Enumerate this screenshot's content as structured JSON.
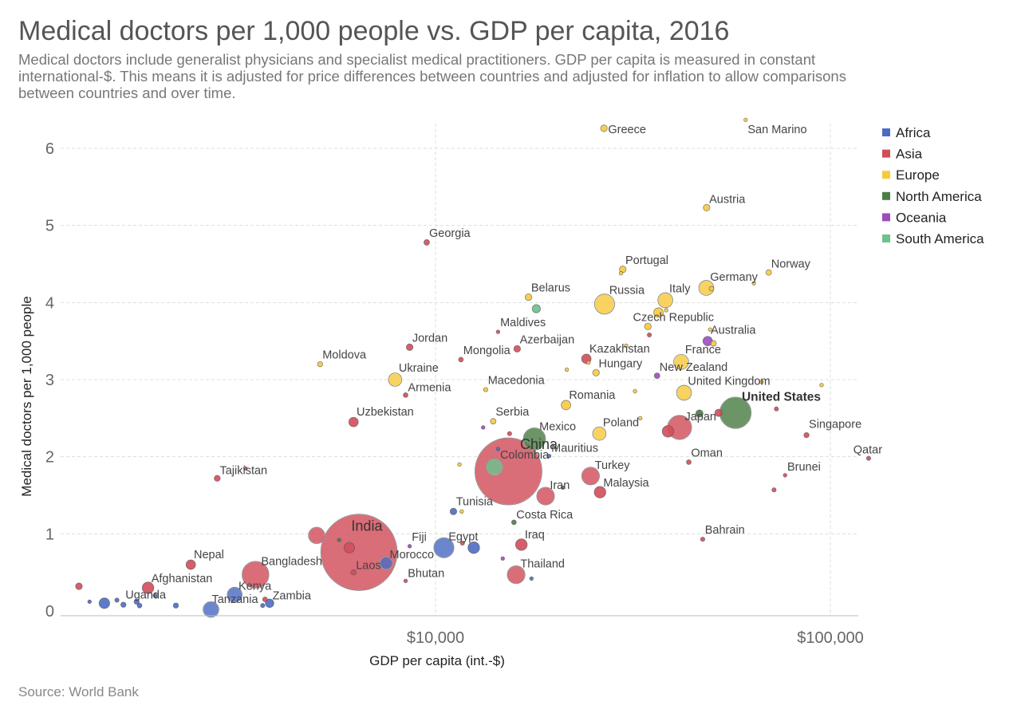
{
  "title": "Medical doctors per 1,000 people vs. GDP per capita, 2016",
  "subtitle": "Medical doctors include generalist physicians and specialist medical practitioners. GDP per capita is measured in constant international-$. This means it is adjusted for price differences between countries and adjusted for inflation to allow comparisons between countries and over time.",
  "source": "Source: World Bank",
  "chart_data": {
    "type": "scatter",
    "xscale": "log",
    "xlim": [
      600,
      115000
    ],
    "ylim": [
      0,
      6.4
    ],
    "xlabel": "GDP per capita (int.-$)",
    "ylabel": "Medical doctors per 1,000 people",
    "x_ticks": [
      {
        "value": 10000,
        "label": "$10,000"
      },
      {
        "value": 100000,
        "label": "$100,000"
      }
    ],
    "y_ticks": [
      0,
      1,
      2,
      3,
      4,
      5,
      6
    ],
    "grid": true,
    "legend_position": "right",
    "legend": [
      {
        "name": "Africa",
        "color": "#4C6BC3"
      },
      {
        "name": "Asia",
        "color": "#D14D5A"
      },
      {
        "name": "Europe",
        "color": "#F7C93F"
      },
      {
        "name": "North America",
        "color": "#4A7E44"
      },
      {
        "name": "Oceania",
        "color": "#9B4DBF"
      },
      {
        "name": "South America",
        "color": "#6CC28C"
      }
    ],
    "points": [
      {
        "label": "Greece",
        "x": 26700,
        "y": 6.26,
        "region": "Europe",
        "size": 1
      },
      {
        "label": "San Marino",
        "x": 61000,
        "y": 6.37,
        "region": "Europe",
        "size": 0.2
      },
      {
        "label": "Austria",
        "x": 48600,
        "y": 5.23,
        "region": "Europe",
        "size": 1
      },
      {
        "label": "Georgia",
        "x": 9500,
        "y": 4.78,
        "region": "Asia",
        "size": 0.7
      },
      {
        "label": "Portugal",
        "x": 29800,
        "y": 4.43,
        "region": "Europe",
        "size": 1
      },
      {
        "label": "Norway",
        "x": 69800,
        "y": 4.39,
        "region": "Europe",
        "size": 0.7
      },
      {
        "label": "Germany",
        "x": 48500,
        "y": 4.19,
        "region": "Europe",
        "size": 5
      },
      {
        "label": "Belarus",
        "x": 17200,
        "y": 4.07,
        "region": "Europe",
        "size": 1
      },
      {
        "label": "Russia",
        "x": 26800,
        "y": 3.98,
        "region": "Europe",
        "size": 9
      },
      {
        "label": "Italy",
        "x": 38200,
        "y": 4.03,
        "region": "Europe",
        "size": 5
      },
      {
        "label": "Czech Republic",
        "x": 34500,
        "y": 3.69,
        "region": "Europe",
        "size": 1
      },
      {
        "label": "Australia",
        "x": 48900,
        "y": 3.5,
        "region": "Oceania",
        "size": 2
      },
      {
        "label": "Maldives",
        "x": 14400,
        "y": 3.62,
        "region": "Asia",
        "size": 0.3
      },
      {
        "label": "Jordan",
        "x": 8600,
        "y": 3.42,
        "region": "Asia",
        "size": 1
      },
      {
        "label": "Azerbaijan",
        "x": 16100,
        "y": 3.4,
        "region": "Asia",
        "size": 1
      },
      {
        "label": "Mongolia",
        "x": 11600,
        "y": 3.26,
        "region": "Asia",
        "size": 0.5
      },
      {
        "label": "Kazakhstan",
        "x": 24100,
        "y": 3.27,
        "region": "Asia",
        "size": 2
      },
      {
        "label": "France",
        "x": 41900,
        "y": 3.23,
        "region": "Europe",
        "size": 5
      },
      {
        "label": "Moldova",
        "x": 5100,
        "y": 3.2,
        "region": "Europe",
        "size": 0.6
      },
      {
        "label": "Hungary",
        "x": 25500,
        "y": 3.09,
        "region": "Europe",
        "size": 1
      },
      {
        "label": "New Zealand",
        "x": 36400,
        "y": 3.05,
        "region": "Oceania",
        "size": 0.7
      },
      {
        "label": "Ukraine",
        "x": 7900,
        "y": 3.0,
        "region": "Europe",
        "size": 4
      },
      {
        "label": "Macedonia",
        "x": 13400,
        "y": 2.87,
        "region": "Europe",
        "size": 0.4
      },
      {
        "label": "United Kingdom",
        "x": 42600,
        "y": 2.83,
        "region": "Europe",
        "size": 5
      },
      {
        "label": "Armenia",
        "x": 8400,
        "y": 2.8,
        "region": "Asia",
        "size": 0.5
      },
      {
        "label": "Romania",
        "x": 21400,
        "y": 2.67,
        "region": "Europe",
        "size": 2
      },
      {
        "label": "United States",
        "x": 57500,
        "y": 2.57,
        "region": "North America",
        "size": 22,
        "bold": true
      },
      {
        "label": "Uzbekistan",
        "x": 6200,
        "y": 2.45,
        "region": "Asia",
        "size": 2
      },
      {
        "label": "Serbia",
        "x": 14000,
        "y": 2.46,
        "region": "Europe",
        "size": 0.7
      },
      {
        "label": "Japan",
        "x": 41500,
        "y": 2.38,
        "region": "Asia",
        "size": 13
      },
      {
        "label": "Poland",
        "x": 26000,
        "y": 2.3,
        "region": "Europe",
        "size": 4
      },
      {
        "label": "Singapore",
        "x": 87000,
        "y": 2.28,
        "region": "Asia",
        "size": 0.6
      },
      {
        "label": "Mexico",
        "x": 17800,
        "y": 2.23,
        "region": "North America",
        "size": 11
      },
      {
        "label": "China",
        "x": 15300,
        "y": 1.81,
        "region": "Asia",
        "size": 100,
        "bold": true
      },
      {
        "label": "Mauritius",
        "x": 19400,
        "y": 2.01,
        "region": "Africa",
        "size": 0.3
      },
      {
        "label": "Qatar",
        "x": 125000,
        "y": 1.98,
        "region": "Asia",
        "size": 0.4
      },
      {
        "label": "Oman",
        "x": 43800,
        "y": 1.93,
        "region": "Asia",
        "size": 0.5
      },
      {
        "label": "Colombia",
        "x": 14100,
        "y": 1.87,
        "region": "South America",
        "size": 6
      },
      {
        "label": "Tajikistan",
        "x": 2800,
        "y": 1.72,
        "region": "Asia",
        "size": 0.8
      },
      {
        "label": "Turkey",
        "x": 24700,
        "y": 1.75,
        "region": "Asia",
        "size": 7
      },
      {
        "label": "Brunei",
        "x": 76800,
        "y": 1.76,
        "region": "Asia",
        "size": 0.3
      },
      {
        "label": "Malaysia",
        "x": 26100,
        "y": 1.54,
        "region": "Asia",
        "size": 3
      },
      {
        "label": "Iran",
        "x": 19000,
        "y": 1.49,
        "region": "Asia",
        "size": 7
      },
      {
        "label": "Tunisia",
        "x": 11100,
        "y": 1.29,
        "region": "Africa",
        "size": 1
      },
      {
        "label": "Costa Rica",
        "x": 15800,
        "y": 1.15,
        "region": "North America",
        "size": 0.5
      },
      {
        "label": "India",
        "x": 6400,
        "y": 0.76,
        "region": "Asia",
        "size": 130,
        "bold": true
      },
      {
        "label": "Bahrain",
        "x": 47500,
        "y": 0.93,
        "region": "Asia",
        "size": 0.4
      },
      {
        "label": "Iraq",
        "x": 16500,
        "y": 0.86,
        "region": "Asia",
        "size": 3
      },
      {
        "label": "Egypt",
        "x": 10500,
        "y": 0.82,
        "region": "Africa",
        "size": 9
      },
      {
        "label": "Fiji",
        "x": 8600,
        "y": 0.84,
        "region": "Oceania",
        "size": 0.3
      },
      {
        "label": "Nepal",
        "x": 2400,
        "y": 0.6,
        "region": "Asia",
        "size": 2
      },
      {
        "label": "Bangladesh",
        "x": 3500,
        "y": 0.47,
        "region": "Asia",
        "size": 16
      },
      {
        "label": "Morocco",
        "x": 7500,
        "y": 0.62,
        "region": "Africa",
        "size": 3.5
      },
      {
        "label": "Laos",
        "x": 6200,
        "y": 0.5,
        "region": "Asia",
        "size": 0.6
      },
      {
        "label": "Thailand",
        "x": 16000,
        "y": 0.47,
        "region": "Asia",
        "size": 7
      },
      {
        "label": "Bhutan",
        "x": 8400,
        "y": 0.39,
        "region": "Asia",
        "size": 0.3
      },
      {
        "label": "Afghanistan",
        "x": 1870,
        "y": 0.3,
        "region": "Asia",
        "size": 3
      },
      {
        "label": "Kenya",
        "x": 3100,
        "y": 0.21,
        "region": "Africa",
        "size": 5
      },
      {
        "label": "Uganda",
        "x": 1750,
        "y": 0.12,
        "region": "Africa",
        "size": 0.6
      },
      {
        "label": "Zambia",
        "x": 3800,
        "y": 0.1,
        "region": "Africa",
        "size": 1.6
      },
      {
        "label": "Tanzania",
        "x": 2700,
        "y": 0.02,
        "region": "Africa",
        "size": 5.5
      }
    ],
    "unlabeled_points": [
      {
        "x": 620,
        "y": 0.05,
        "region": "Africa",
        "size": 1.5
      },
      {
        "x": 1250,
        "y": 0.32,
        "region": "Asia",
        "size": 1
      },
      {
        "x": 1330,
        "y": 0.12,
        "region": "Africa",
        "size": 0.3
      },
      {
        "x": 1450,
        "y": 0.1,
        "region": "Africa",
        "size": 2.5
      },
      {
        "x": 1560,
        "y": 0.14,
        "region": "Africa",
        "size": 0.4
      },
      {
        "x": 1620,
        "y": 0.08,
        "region": "Africa",
        "size": 0.6
      },
      {
        "x": 1780,
        "y": 0.07,
        "region": "Africa",
        "size": 0.5
      },
      {
        "x": 1950,
        "y": 0.2,
        "region": "Africa",
        "size": 0.4
      },
      {
        "x": 2200,
        "y": 0.07,
        "region": "Africa",
        "size": 0.6
      },
      {
        "x": 3650,
        "y": 0.07,
        "region": "Africa",
        "size": 0.4
      },
      {
        "x": 3700,
        "y": 0.15,
        "region": "Asia",
        "size": 0.5
      },
      {
        "x": 5700,
        "y": 0.92,
        "region": "North America",
        "size": 0.3
      },
      {
        "x": 5000,
        "y": 0.98,
        "region": "Asia",
        "size": 6
      },
      {
        "x": 6050,
        "y": 0.82,
        "region": "Asia",
        "size": 2.5
      },
      {
        "x": 3300,
        "y": 1.85,
        "region": "Asia",
        "size": 0.3
      },
      {
        "x": 12500,
        "y": 0.82,
        "region": "Africa",
        "size": 3
      },
      {
        "x": 11700,
        "y": 0.88,
        "region": "Asia",
        "size": 0.4
      },
      {
        "x": 11500,
        "y": 1.9,
        "region": "Europe",
        "size": 0.3
      },
      {
        "x": 11650,
        "y": 1.29,
        "region": "Europe",
        "size": 0.3
      },
      {
        "x": 13200,
        "y": 2.38,
        "region": "Oceania",
        "size": 0.3
      },
      {
        "x": 14400,
        "y": 2.1,
        "region": "Africa",
        "size": 0.3
      },
      {
        "x": 14800,
        "y": 0.68,
        "region": "Oceania",
        "size": 0.3
      },
      {
        "x": 17500,
        "y": 0.42,
        "region": "Africa",
        "size": 0.3
      },
      {
        "x": 15400,
        "y": 2.3,
        "region": "Asia",
        "size": 0.4
      },
      {
        "x": 18000,
        "y": 3.92,
        "region": "South America",
        "size": 1.5
      },
      {
        "x": 21000,
        "y": 1.6,
        "region": "North America",
        "size": 0.3
      },
      {
        "x": 21500,
        "y": 3.13,
        "region": "Europe",
        "size": 0.3
      },
      {
        "x": 24400,
        "y": 3.22,
        "region": "Europe",
        "size": 0.3
      },
      {
        "x": 29500,
        "y": 4.38,
        "region": "Europe",
        "size": 0.3
      },
      {
        "x": 30400,
        "y": 3.44,
        "region": "Europe",
        "size": 0.3
      },
      {
        "x": 32000,
        "y": 2.85,
        "region": "Europe",
        "size": 0.3
      },
      {
        "x": 33000,
        "y": 2.5,
        "region": "Europe",
        "size": 0.3
      },
      {
        "x": 34800,
        "y": 3.58,
        "region": "Asia",
        "size": 0.4
      },
      {
        "x": 36700,
        "y": 3.87,
        "region": "Europe",
        "size": 2
      },
      {
        "x": 38400,
        "y": 3.9,
        "region": "Europe",
        "size": 0.3
      },
      {
        "x": 38800,
        "y": 2.33,
        "region": "Asia",
        "size": 3
      },
      {
        "x": 46600,
        "y": 2.56,
        "region": "North America",
        "size": 1.2
      },
      {
        "x": 50600,
        "y": 3.47,
        "region": "Europe",
        "size": 0.7
      },
      {
        "x": 50000,
        "y": 4.18,
        "region": "Europe",
        "size": 0.5
      },
      {
        "x": 52100,
        "y": 2.57,
        "region": "Asia",
        "size": 1.2
      },
      {
        "x": 49600,
        "y": 3.65,
        "region": "Europe",
        "size": 0.3
      },
      {
        "x": 64000,
        "y": 4.25,
        "region": "Europe",
        "size": 0.3
      },
      {
        "x": 67000,
        "y": 2.97,
        "region": "Europe",
        "size": 0.3
      },
      {
        "x": 72000,
        "y": 1.57,
        "region": "Asia",
        "size": 0.4
      },
      {
        "x": 73000,
        "y": 2.62,
        "region": "Asia",
        "size": 0.4
      },
      {
        "x": 95000,
        "y": 2.93,
        "region": "Europe",
        "size": 0.3
      }
    ]
  }
}
